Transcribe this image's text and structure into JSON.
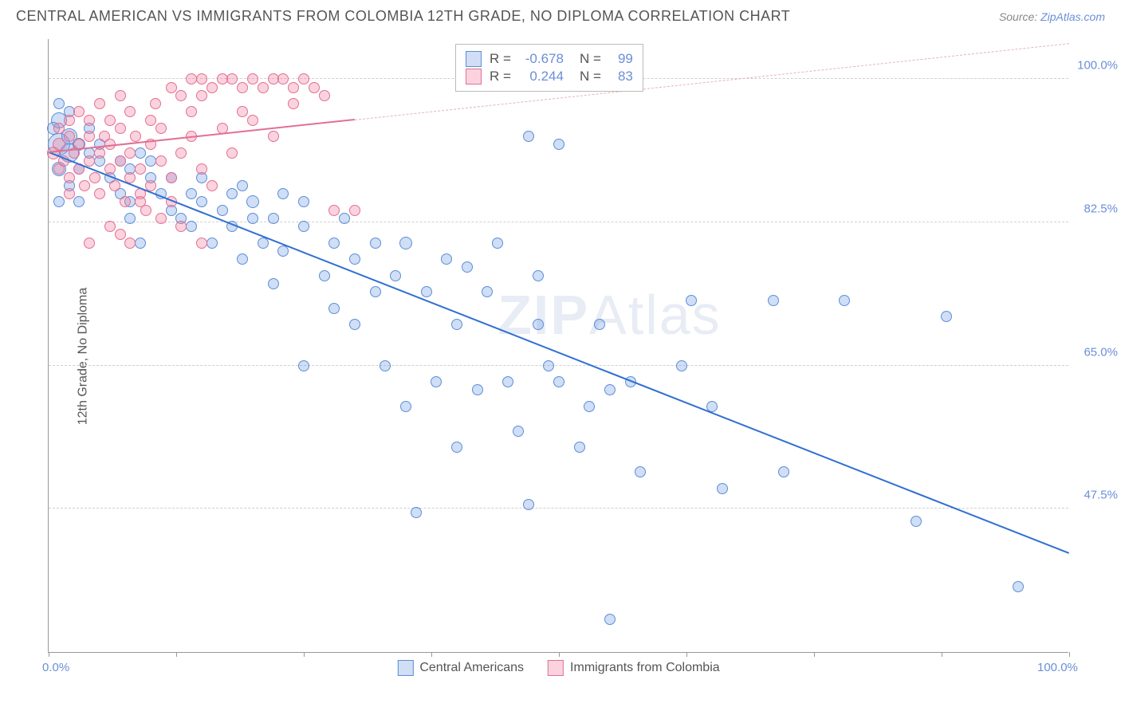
{
  "header": {
    "title": "CENTRAL AMERICAN VS IMMIGRANTS FROM COLOMBIA 12TH GRADE, NO DIPLOMA CORRELATION CHART",
    "source_prefix": "Source: ",
    "source_link": "ZipAtlas.com"
  },
  "chart": {
    "type": "scatter",
    "y_axis_title": "12th Grade, No Diploma",
    "background_color": "#ffffff",
    "grid_color": "#d0d0d0",
    "xlim": [
      0,
      100
    ],
    "ylim": [
      30,
      105
    ],
    "x_ticks": [
      0,
      12.5,
      25,
      37.5,
      50,
      62.5,
      75,
      87.5,
      100
    ],
    "x_tick_labels": {
      "0": "0.0%",
      "100": "100.0%"
    },
    "y_gridlines": [
      47.5,
      65.0,
      82.5,
      100.0
    ],
    "y_tick_labels": {
      "47.5": "47.5%",
      "65.0": "65.0%",
      "82.5": "82.5%",
      "100.0": "100.0%"
    },
    "watermark": "ZIPAtlas",
    "marker_base_radius": 7,
    "series": [
      {
        "name": "Central Americans",
        "fill": "rgba(120,160,230,0.35)",
        "stroke": "#5b8fd6",
        "trend_color": "#2f6fd0",
        "trend_dash_color": "#9fb8e0",
        "R": "-0.678",
        "N": "99",
        "trend": {
          "x1": 0,
          "y1": 91,
          "x2": 100,
          "y2": 42
        },
        "points": [
          [
            1,
            92,
            14
          ],
          [
            1,
            95,
            10
          ],
          [
            2,
            93,
            10
          ],
          [
            2,
            91,
            12
          ],
          [
            1,
            89,
            9
          ],
          [
            0.5,
            94,
            8
          ],
          [
            3,
            92,
            8
          ],
          [
            2,
            96,
            7
          ],
          [
            1,
            97,
            7
          ],
          [
            3,
            89,
            7
          ],
          [
            4,
            91,
            7
          ],
          [
            5,
            90,
            7
          ],
          [
            4,
            94,
            7
          ],
          [
            2,
            87,
            7
          ],
          [
            1,
            85,
            7
          ],
          [
            3,
            85,
            7
          ],
          [
            5,
            92,
            7
          ],
          [
            6,
            88,
            7
          ],
          [
            7,
            90,
            7
          ],
          [
            7,
            86,
            7
          ],
          [
            8,
            89,
            7
          ],
          [
            8,
            85,
            7
          ],
          [
            9,
            91,
            7
          ],
          [
            10,
            88,
            7
          ],
          [
            8,
            83,
            7
          ],
          [
            9,
            80,
            7
          ],
          [
            11,
            86,
            7
          ],
          [
            12,
            84,
            7
          ],
          [
            10,
            90,
            7
          ],
          [
            12,
            88,
            7
          ],
          [
            13,
            83,
            7
          ],
          [
            14,
            86,
            7
          ],
          [
            14,
            82,
            7
          ],
          [
            15,
            85,
            7
          ],
          [
            15,
            88,
            7
          ],
          [
            16,
            80,
            7
          ],
          [
            17,
            84,
            7
          ],
          [
            18,
            86,
            7
          ],
          [
            18,
            82,
            7
          ],
          [
            19,
            78,
            7
          ],
          [
            19,
            87,
            7
          ],
          [
            20,
            83,
            7
          ],
          [
            20,
            85,
            8
          ],
          [
            21,
            80,
            7
          ],
          [
            22,
            75,
            7
          ],
          [
            22,
            83,
            7
          ],
          [
            23,
            86,
            7
          ],
          [
            23,
            79,
            7
          ],
          [
            25,
            65,
            7
          ],
          [
            25,
            85,
            7
          ],
          [
            25,
            82,
            7
          ],
          [
            27,
            76,
            7
          ],
          [
            28,
            80,
            7
          ],
          [
            28,
            72,
            7
          ],
          [
            29,
            83,
            7
          ],
          [
            30,
            78,
            7
          ],
          [
            30,
            70,
            7
          ],
          [
            32,
            80,
            7
          ],
          [
            32,
            74,
            7
          ],
          [
            33,
            65,
            7
          ],
          [
            34,
            76,
            7
          ],
          [
            35,
            60,
            7
          ],
          [
            35,
            80,
            8
          ],
          [
            36,
            47,
            7
          ],
          [
            37,
            74,
            7
          ],
          [
            38,
            63,
            7
          ],
          [
            39,
            78,
            7
          ],
          [
            40,
            55,
            7
          ],
          [
            40,
            70,
            7
          ],
          [
            41,
            77,
            7
          ],
          [
            42,
            62,
            7
          ],
          [
            43,
            74,
            7
          ],
          [
            44,
            80,
            7
          ],
          [
            45,
            63,
            7
          ],
          [
            46,
            57,
            7
          ],
          [
            47,
            93,
            7
          ],
          [
            47,
            48,
            7
          ],
          [
            48,
            76,
            7
          ],
          [
            48,
            70,
            7
          ],
          [
            49,
            65,
            7
          ],
          [
            50,
            63,
            7
          ],
          [
            50,
            92,
            7
          ],
          [
            52,
            55,
            7
          ],
          [
            53,
            60,
            7
          ],
          [
            54,
            70,
            7
          ],
          [
            55,
            62,
            7
          ],
          [
            55,
            34,
            7
          ],
          [
            57,
            63,
            7
          ],
          [
            58,
            52,
            7
          ],
          [
            62,
            65,
            7
          ],
          [
            63,
            73,
            7
          ],
          [
            65,
            60,
            7
          ],
          [
            66,
            50,
            7
          ],
          [
            71,
            73,
            7
          ],
          [
            72,
            52,
            7
          ],
          [
            78,
            73,
            7
          ],
          [
            85,
            46,
            7
          ],
          [
            88,
            71,
            7
          ],
          [
            95,
            38,
            7
          ]
        ]
      },
      {
        "name": "Immigrants from Colombia",
        "fill": "rgba(240,130,160,0.35)",
        "stroke": "#e36f93",
        "trend_color": "#e36f93",
        "trend_dash_color": "#e8b0c0",
        "R": "0.244",
        "N": "83",
        "trend": {
          "x1": 0,
          "y1": 91,
          "x2": 30,
          "y2": 95
        },
        "points": [
          [
            0.5,
            91,
            8
          ],
          [
            1,
            92,
            8
          ],
          [
            1,
            89,
            7
          ],
          [
            1,
            94,
            7
          ],
          [
            1.5,
            90,
            7
          ],
          [
            2,
            93,
            7
          ],
          [
            2,
            88,
            7
          ],
          [
            2,
            95,
            7
          ],
          [
            2.5,
            91,
            7
          ],
          [
            3,
            92,
            7
          ],
          [
            3,
            89,
            7
          ],
          [
            3,
            96,
            7
          ],
          [
            3.5,
            87,
            7
          ],
          [
            4,
            90,
            7
          ],
          [
            4,
            93,
            7
          ],
          [
            4,
            95,
            7
          ],
          [
            4.5,
            88,
            7
          ],
          [
            5,
            91,
            7
          ],
          [
            5,
            86,
            7
          ],
          [
            5,
            97,
            7
          ],
          [
            5.5,
            93,
            7
          ],
          [
            6,
            89,
            7
          ],
          [
            6,
            92,
            7
          ],
          [
            6,
            95,
            7
          ],
          [
            6.5,
            87,
            7
          ],
          [
            7,
            90,
            7
          ],
          [
            7,
            94,
            7
          ],
          [
            7,
            98,
            7
          ],
          [
            7.5,
            85,
            7
          ],
          [
            8,
            91,
            7
          ],
          [
            8,
            88,
            7
          ],
          [
            8,
            96,
            7
          ],
          [
            8.5,
            93,
            7
          ],
          [
            9,
            86,
            7
          ],
          [
            9,
            89,
            7
          ],
          [
            9,
            85,
            7
          ],
          [
            9.5,
            84,
            7
          ],
          [
            10,
            92,
            7
          ],
          [
            10,
            95,
            7
          ],
          [
            10,
            87,
            7
          ],
          [
            10.5,
            97,
            7
          ],
          [
            11,
            83,
            7
          ],
          [
            11,
            90,
            7
          ],
          [
            11,
            94,
            7
          ],
          [
            12,
            88,
            7
          ],
          [
            12,
            99,
            7
          ],
          [
            12,
            85,
            7
          ],
          [
            13,
            98,
            7
          ],
          [
            13,
            91,
            7
          ],
          [
            13,
            82,
            7
          ],
          [
            14,
            96,
            7
          ],
          [
            14,
            100,
            7
          ],
          [
            14,
            93,
            7
          ],
          [
            15,
            98,
            7
          ],
          [
            15,
            100,
            7
          ],
          [
            15,
            89,
            7
          ],
          [
            16,
            87,
            7
          ],
          [
            16,
            99,
            7
          ],
          [
            17,
            94,
            7
          ],
          [
            17,
            100,
            7
          ],
          [
            18,
            100,
            7
          ],
          [
            18,
            91,
            7
          ],
          [
            19,
            99,
            7
          ],
          [
            19,
            96,
            7
          ],
          [
            20,
            100,
            7
          ],
          [
            20,
            95,
            7
          ],
          [
            21,
            99,
            7
          ],
          [
            22,
            100,
            7
          ],
          [
            22,
            93,
            7
          ],
          [
            23,
            100,
            7
          ],
          [
            24,
            99,
            7
          ],
          [
            24,
            97,
            7
          ],
          [
            25,
            100,
            7
          ],
          [
            26,
            99,
            7
          ],
          [
            27,
            98,
            7
          ],
          [
            28,
            84,
            7
          ],
          [
            4,
            80,
            7
          ],
          [
            6,
            82,
            7
          ],
          [
            8,
            80,
            7
          ],
          [
            15,
            80,
            7
          ],
          [
            30,
            84,
            7
          ],
          [
            2,
            86,
            7
          ],
          [
            7,
            81,
            7
          ]
        ]
      }
    ],
    "legend_labels": [
      "Central Americans",
      "Immigrants from Colombia"
    ]
  }
}
